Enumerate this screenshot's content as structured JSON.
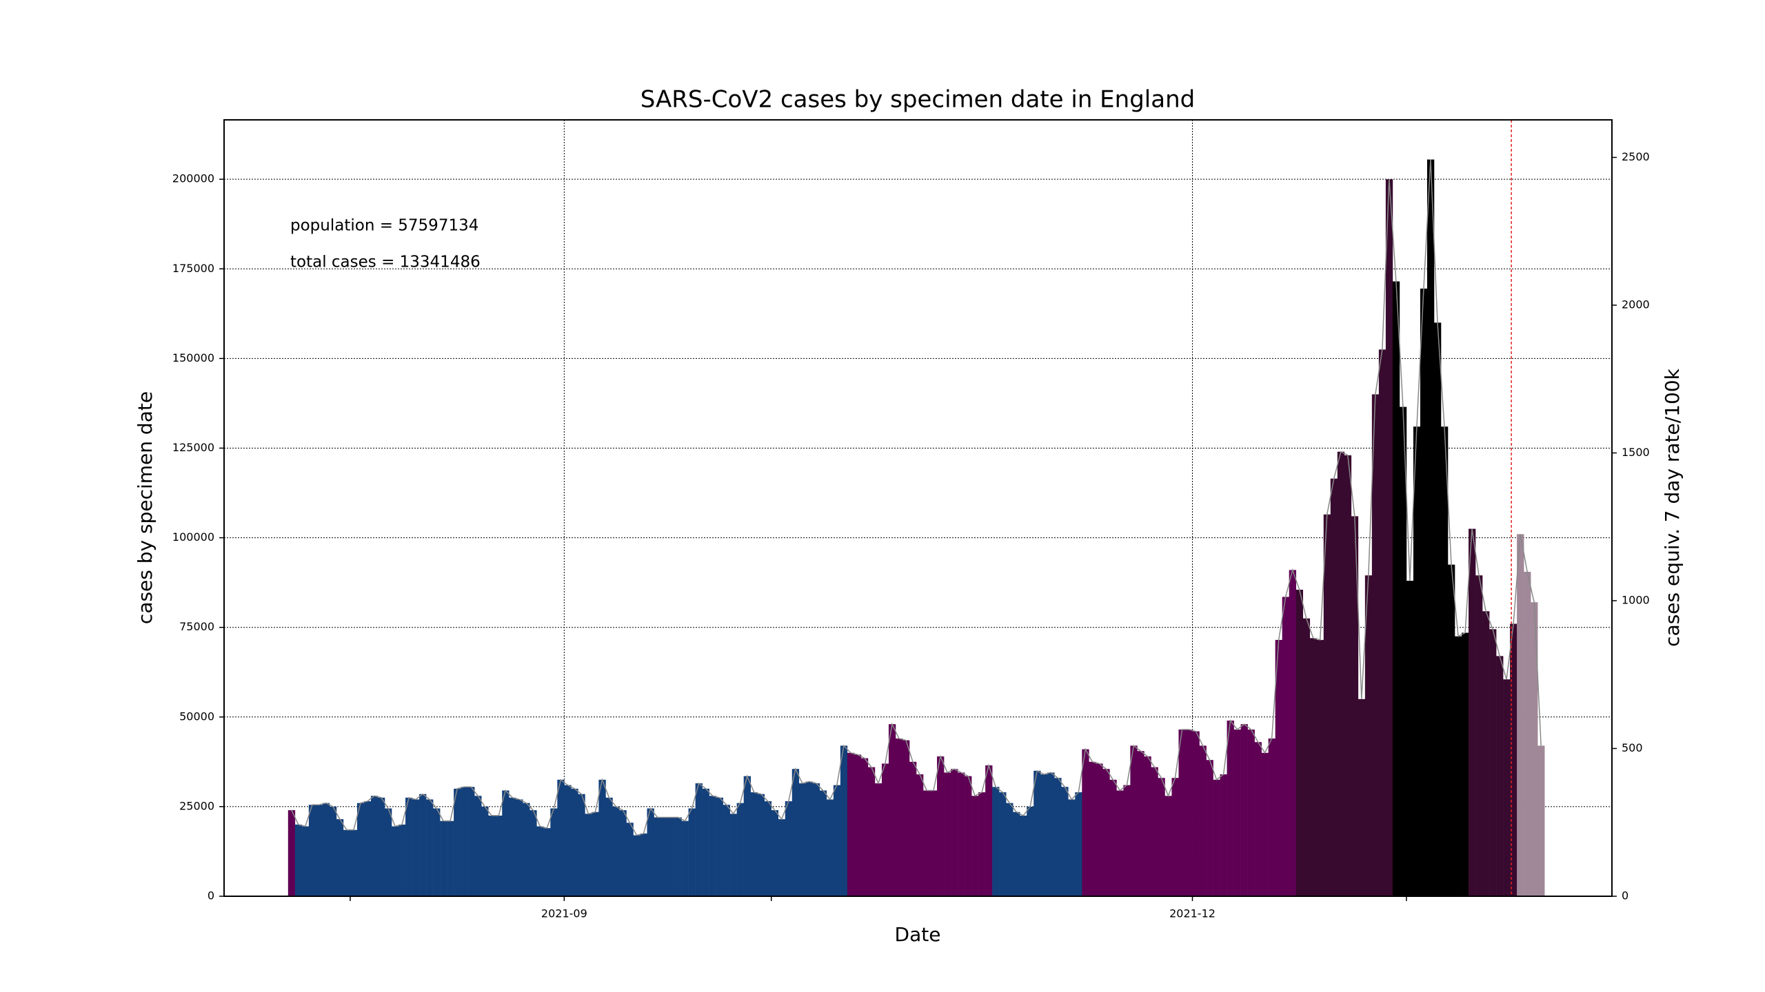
{
  "chart_data": {
    "type": "bar",
    "title": "SARS-CoV2 cases by specimen date in England",
    "xlabel": "Date",
    "ylabel": "cases by specimen date",
    "y2label": "cases equiv. 7 day rate/100k",
    "annotations": [
      "population = 57597134",
      "total cases = 13341486"
    ],
    "values": [
      24000,
      20000,
      19500,
      25500,
      25500,
      26000,
      25000,
      21500,
      18500,
      18500,
      26000,
      26500,
      28000,
      27500,
      24500,
      19500,
      20000,
      27500,
      27000,
      28500,
      27000,
      24500,
      21000,
      21000,
      30000,
      30500,
      30500,
      28000,
      25000,
      22500,
      22500,
      29500,
      27500,
      27000,
      26000,
      24000,
      19500,
      19000,
      24500,
      32500,
      31000,
      30000,
      28500,
      23000,
      23500,
      32500,
      27500,
      25000,
      24000,
      20500,
      17000,
      17500,
      24500,
      22000,
      22000,
      22000,
      22000,
      21000,
      24500,
      31500,
      30000,
      28000,
      27500,
      25500,
      23000,
      26000,
      33500,
      29000,
      28500,
      26500,
      24000,
      21500,
      26500,
      35500,
      31500,
      32000,
      31500,
      29500,
      27000,
      31000,
      42000,
      40000,
      39500,
      38500,
      36000,
      31500,
      37000,
      48000,
      44000,
      43500,
      37500,
      34000,
      29500,
      29500,
      39000,
      34500,
      35500,
      34500,
      33500,
      28000,
      29000,
      36500,
      30500,
      29000,
      26000,
      23500,
      22500,
      25000,
      35000,
      34000,
      34500,
      33000,
      30500,
      27000,
      29000,
      41000,
      37500,
      37000,
      35500,
      32500,
      29500,
      31000,
      42000,
      40500,
      39000,
      36000,
      33000,
      28000,
      33000,
      46500,
      46500,
      46000,
      42000,
      38000,
      32500,
      34000,
      49000,
      46500,
      48000,
      46500,
      43000,
      40000,
      44000,
      71500,
      83500,
      91000,
      85500,
      77500,
      72000,
      71500,
      106500,
      116500,
      124000,
      123000,
      106000,
      55000,
      89500,
      140000,
      152500,
      200000,
      171500,
      136500,
      88000,
      131000,
      169500,
      205500,
      160000,
      131000,
      92500,
      72500,
      73500,
      102500,
      89500,
      79500,
      74500,
      67000,
      60500,
      76000,
      101000,
      90500,
      82000,
      42000
    ],
    "colors": [
      "#5f0054",
      "#13407b",
      "#13407b",
      "#13407b",
      "#13407b",
      "#13407b",
      "#13407b",
      "#13407b",
      "#13407b",
      "#13407b",
      "#13407b",
      "#13407b",
      "#13407b",
      "#13407b",
      "#13407b",
      "#13407b",
      "#13407b",
      "#13407b",
      "#13407b",
      "#13407b",
      "#13407b",
      "#13407b",
      "#13407b",
      "#13407b",
      "#13407b",
      "#13407b",
      "#13407b",
      "#13407b",
      "#13407b",
      "#13407b",
      "#13407b",
      "#13407b",
      "#13407b",
      "#13407b",
      "#13407b",
      "#13407b",
      "#13407b",
      "#13407b",
      "#13407b",
      "#13407b",
      "#13407b",
      "#13407b",
      "#13407b",
      "#13407b",
      "#13407b",
      "#13407b",
      "#13407b",
      "#13407b",
      "#13407b",
      "#13407b",
      "#13407b",
      "#13407b",
      "#13407b",
      "#13407b",
      "#13407b",
      "#13407b",
      "#13407b",
      "#13407b",
      "#13407b",
      "#13407b",
      "#13407b",
      "#13407b",
      "#13407b",
      "#13407b",
      "#13407b",
      "#13407b",
      "#13407b",
      "#13407b",
      "#13407b",
      "#13407b",
      "#13407b",
      "#13407b",
      "#13407b",
      "#13407b",
      "#13407b",
      "#13407b",
      "#13407b",
      "#13407b",
      "#13407b",
      "#13407b",
      "#13407b",
      "#5f0054",
      "#5f0054",
      "#5f0054",
      "#5f0054",
      "#5f0054",
      "#5f0054",
      "#5f0054",
      "#5f0054",
      "#5f0054",
      "#5f0054",
      "#5f0054",
      "#5f0054",
      "#5f0054",
      "#5f0054",
      "#5f0054",
      "#5f0054",
      "#5f0054",
      "#5f0054",
      "#5f0054",
      "#5f0054",
      "#5f0054",
      "#13407b",
      "#13407b",
      "#13407b",
      "#13407b",
      "#13407b",
      "#13407b",
      "#13407b",
      "#13407b",
      "#13407b",
      "#13407b",
      "#13407b",
      "#13407b",
      "#13407b",
      "#5f0054",
      "#5f0054",
      "#5f0054",
      "#5f0054",
      "#5f0054",
      "#5f0054",
      "#5f0054",
      "#5f0054",
      "#5f0054",
      "#5f0054",
      "#5f0054",
      "#5f0054",
      "#5f0054",
      "#5f0054",
      "#5f0054",
      "#5f0054",
      "#5f0054",
      "#5f0054",
      "#5f0054",
      "#5f0054",
      "#5f0054",
      "#5f0054",
      "#5f0054",
      "#5f0054",
      "#5f0054",
      "#5f0054",
      "#5f0054",
      "#5f0054",
      "#5f0054",
      "#5f0054",
      "#5f0054",
      "#390a2f",
      "#390a2f",
      "#390a2f",
      "#390a2f",
      "#390a2f",
      "#390a2f",
      "#390a2f",
      "#390a2f",
      "#390a2f",
      "#390a2f",
      "#390a2f",
      "#390a2f",
      "#390a2f",
      "#390a2f",
      "#000000",
      "#000000",
      "#000000",
      "#000000",
      "#000000",
      "#000000",
      "#000000",
      "#000000",
      "#000000",
      "#000000",
      "#000000",
      "#390a2f",
      "#390a2f",
      "#390a2f",
      "#390a2f",
      "#390a2f",
      "#390a2f",
      "#390a2f",
      "#a08898",
      "#a08898",
      "#a08898",
      "#a08898"
    ],
    "line_color": "#888888",
    "xlim": [
      -9.27,
      191.77
    ],
    "xticks": [
      {
        "value": 40,
        "label": "2021-09"
      },
      {
        "value": 131,
        "label": "2021-12"
      }
    ],
    "xminorticks": [
      9,
      70,
      162
    ],
    "vline": 177.2,
    "vline_color": "#e02020",
    "ylim": [
      0,
      216560
    ],
    "yticks": [
      0,
      25000,
      50000,
      75000,
      100000,
      125000,
      150000,
      175000,
      200000
    ],
    "y2lim": [
      0,
      2627
    ],
    "y2ticks": [
      0,
      500,
      1000,
      1500,
      2000,
      2500
    ],
    "grid": true
  }
}
